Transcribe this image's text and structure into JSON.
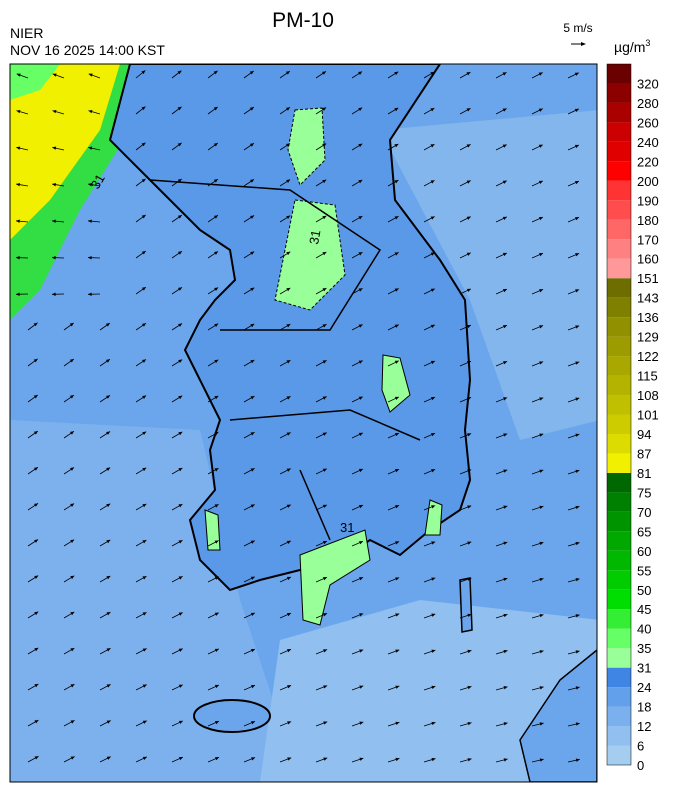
{
  "header": {
    "title": "PM-10",
    "source": "NIER",
    "datetime": "NOV 16 2025 14:00 KST",
    "wind_scale": "5 m/s"
  },
  "legend": {
    "unit": "µg/m",
    "unit_sup": "3",
    "labels": [
      0,
      6,
      12,
      18,
      24,
      31,
      35,
      40,
      45,
      50,
      55,
      60,
      65,
      70,
      75,
      81,
      87,
      94,
      101,
      108,
      115,
      122,
      129,
      136,
      143,
      151,
      160,
      170,
      180,
      190,
      200,
      220,
      240,
      260,
      280,
      320
    ],
    "colors": [
      "#a4cdf0",
      "#90bff0",
      "#7bb0ee",
      "#63a0ec",
      "#3f86e4",
      "#99ff99",
      "#66ff66",
      "#33ee33",
      "#00dd00",
      "#00cc00",
      "#00b800",
      "#00a800",
      "#009400",
      "#008000",
      "#006800",
      "#f0f000",
      "#dcdc00",
      "#cccc00",
      "#c0c000",
      "#b4b400",
      "#a8a800",
      "#9c9c00",
      "#909000",
      "#808000",
      "#6e6e00",
      "#ff9999",
      "#ff8080",
      "#ff6666",
      "#ff4c4c",
      "#ff3333",
      "#ff0000",
      "#e00000",
      "#cc0000",
      "#aa0000",
      "#8c0000",
      "#6a0000"
    ]
  },
  "map": {
    "contour_labels": [
      "31",
      "31",
      "31"
    ]
  }
}
